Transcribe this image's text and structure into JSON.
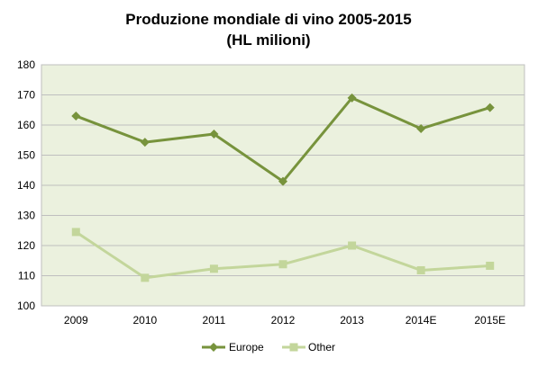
{
  "chart_data": {
    "type": "line",
    "title": "Produzione mondiale di vino 2005-2015",
    "subtitle": "(HL milioni)",
    "xlabel": "",
    "ylabel": "",
    "categories": [
      "2009",
      "2010",
      "2011",
      "2012",
      "2013",
      "2014E",
      "2015E"
    ],
    "ylim": [
      100,
      180
    ],
    "yticks": [
      "100",
      "110",
      "120",
      "130",
      "140",
      "150",
      "160",
      "170",
      "180"
    ],
    "grid": true,
    "legend_position": "bottom",
    "plot_background": "#ebf1de",
    "series": [
      {
        "name": "Europe",
        "values": [
          163,
          154.3,
          157,
          141.3,
          169,
          158.8,
          165.8
        ],
        "color": "#77933c",
        "marker": "diamond"
      },
      {
        "name": "Other",
        "values": [
          124.5,
          109.3,
          112.3,
          113.8,
          120,
          111.8,
          113.3
        ],
        "color": "#c3d69b",
        "marker": "square"
      }
    ]
  }
}
